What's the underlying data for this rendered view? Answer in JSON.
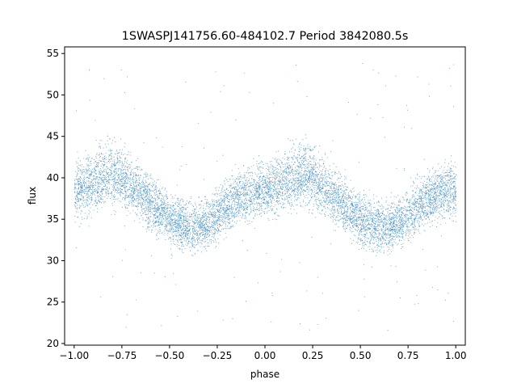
{
  "chart_data": {
    "type": "scatter",
    "title": "1SWASPJ141756.60-484102.7 Period 3842080.5s",
    "xlabel": "phase",
    "ylabel": "flux",
    "xlim": [
      -1.05,
      1.05
    ],
    "ylim": [
      19.8,
      55.8
    ],
    "x_ticks": [
      -1.0,
      -0.75,
      -0.5,
      -0.25,
      0.0,
      0.25,
      0.5,
      0.75,
      1.0
    ],
    "x_tick_labels": [
      "−1.00",
      "−0.75",
      "−0.50",
      "−0.25",
      "0.00",
      "0.25",
      "0.50",
      "0.75",
      "1.00"
    ],
    "y_ticks": [
      20,
      25,
      30,
      35,
      40,
      45,
      50,
      55
    ],
    "y_tick_labels": [
      "20",
      "25",
      "30",
      "35",
      "40",
      "45",
      "50",
      "55"
    ],
    "grid": false,
    "legend": "none",
    "marker_color": "#1f77b4",
    "series": [
      {
        "phase": [
          -1.0,
          -0.95,
          -0.9,
          -0.85,
          -0.8,
          -0.75,
          -0.7,
          -0.65,
          -0.6,
          -0.55,
          -0.5,
          -0.45,
          -0.4,
          -0.35,
          -0.3,
          -0.25,
          -0.2,
          -0.15,
          -0.1,
          -0.05,
          0.0,
          0.05,
          0.1,
          0.15,
          0.2,
          0.25,
          0.3,
          0.35,
          0.4,
          0.45,
          0.5,
          0.55,
          0.6,
          0.65,
          0.7,
          0.75,
          0.8,
          0.85,
          0.9,
          0.95,
          1.0
        ],
        "flux_median": [
          38.5,
          39.0,
          39.5,
          40.0,
          40.5,
          40.0,
          39.0,
          38.0,
          37.0,
          36.0,
          35.0,
          34.5,
          34.0,
          34.0,
          34.5,
          35.5,
          36.5,
          37.5,
          38.0,
          38.5,
          38.5,
          39.0,
          39.5,
          40.0,
          40.5,
          40.0,
          39.0,
          38.0,
          37.0,
          36.0,
          35.0,
          34.5,
          34.0,
          34.0,
          34.5,
          35.5,
          36.5,
          37.5,
          38.0,
          38.5,
          38.5
        ],
        "flux_lower": [
          33.5,
          34.0,
          34.5,
          35.0,
          35.0,
          35.0,
          34.5,
          33.5,
          32.5,
          31.5,
          30.5,
          30.0,
          30.0,
          30.0,
          30.5,
          31.0,
          32.0,
          33.0,
          33.5,
          34.0,
          34.0,
          34.0,
          34.5,
          35.0,
          35.0,
          35.0,
          34.5,
          33.5,
          32.5,
          31.5,
          30.5,
          30.0,
          30.0,
          30.0,
          30.5,
          31.0,
          32.0,
          33.0,
          33.5,
          34.0,
          33.5
        ],
        "flux_upper": [
          43.5,
          44.0,
          45.0,
          46.0,
          46.5,
          45.5,
          44.0,
          42.5,
          41.5,
          40.5,
          39.5,
          39.0,
          38.5,
          38.5,
          39.0,
          40.0,
          41.0,
          42.0,
          42.5,
          43.0,
          43.5,
          44.0,
          45.0,
          46.0,
          46.5,
          45.5,
          44.0,
          42.5,
          41.5,
          40.5,
          39.5,
          39.0,
          38.5,
          38.5,
          39.0,
          40.0,
          41.0,
          42.0,
          42.5,
          43.0,
          43.5
        ]
      }
    ]
  }
}
